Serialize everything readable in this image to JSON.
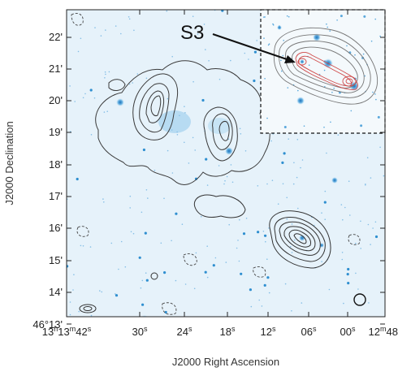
{
  "figure": {
    "source_label": "S3",
    "x_axis_title": "J2000 Right Ascension",
    "y_axis_title": "J2000 Declination",
    "x_ticks": [
      {
        "label": "13h13m42s"
      },
      {
        "label": "30s"
      },
      {
        "label": "24s"
      },
      {
        "label": "18s"
      },
      {
        "label": "12s"
      },
      {
        "label": "06s"
      },
      {
        "label": "00s"
      },
      {
        "label": "12m48s"
      }
    ],
    "y_ticks": [
      {
        "label": "22'"
      },
      {
        "label": "21'"
      },
      {
        "label": "20'"
      },
      {
        "label": "19'"
      },
      {
        "label": "18'"
      },
      {
        "label": "17'"
      },
      {
        "label": "16'"
      },
      {
        "label": "15'"
      },
      {
        "label": "14'"
      },
      {
        "label": "46°13'"
      }
    ],
    "colors": {
      "background_tint": "#e6f2fa",
      "source_blue": "#2f8fd0",
      "contour": "#3a3a3a",
      "inset_contour_red": "#d04a4a"
    }
  }
}
